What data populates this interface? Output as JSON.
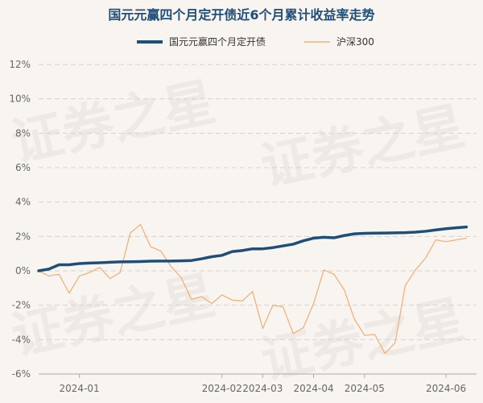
{
  "chart_data": {
    "type": "line",
    "title": "国元元赢四个月定开债近6个月累计收益率走势",
    "watermark": "证券之星",
    "legend": {
      "placement": "top-center"
    },
    "grid": true,
    "yaxis": {
      "range": [
        -6,
        12
      ],
      "ticks": [
        12,
        10,
        8,
        6,
        4,
        2,
        0,
        -2,
        -4,
        -6
      ],
      "tick_labels": [
        "12%",
        "10%",
        "8%",
        "6%",
        "4%",
        "2%",
        "0%",
        "-2%",
        "-4%",
        "-6%"
      ]
    },
    "xaxis": {
      "range": [
        0,
        43
      ],
      "ticks": [
        4,
        18,
        22,
        27,
        32,
        40
      ],
      "tick_labels": [
        "2024-01",
        "2024-02",
        "2024-03",
        "2024-04",
        "2024-05",
        "2024-06"
      ]
    },
    "series": [
      {
        "name": "国元元赢四个月定开债",
        "color": "#1f4e79",
        "values": [
          0.0,
          0.1,
          0.35,
          0.35,
          0.42,
          0.45,
          0.47,
          0.5,
          0.52,
          0.53,
          0.54,
          0.56,
          0.57,
          0.57,
          0.58,
          0.6,
          0.7,
          0.82,
          0.9,
          1.12,
          1.18,
          1.28,
          1.28,
          1.35,
          1.45,
          1.55,
          1.75,
          1.9,
          1.95,
          1.92,
          2.05,
          2.15,
          2.18,
          2.19,
          2.2,
          2.21,
          2.22,
          2.25,
          2.3,
          2.38,
          2.45,
          2.5,
          2.55
        ]
      },
      {
        "name": "沪深300",
        "color": "#f0b27a",
        "values": [
          0.0,
          -0.3,
          -0.2,
          -1.3,
          -0.3,
          -0.1,
          0.2,
          -0.45,
          -0.1,
          2.2,
          2.7,
          1.4,
          1.15,
          0.25,
          -0.4,
          -1.65,
          -1.5,
          -1.9,
          -1.4,
          -1.7,
          -1.75,
          -1.2,
          -3.35,
          -2.0,
          -2.1,
          -3.65,
          -3.3,
          -1.9,
          0.05,
          -0.2,
          -1.1,
          -2.8,
          -3.75,
          -3.7,
          -4.8,
          -4.2,
          -0.85,
          0.05,
          0.75,
          1.8,
          1.7,
          1.8,
          1.9
        ]
      }
    ]
  }
}
